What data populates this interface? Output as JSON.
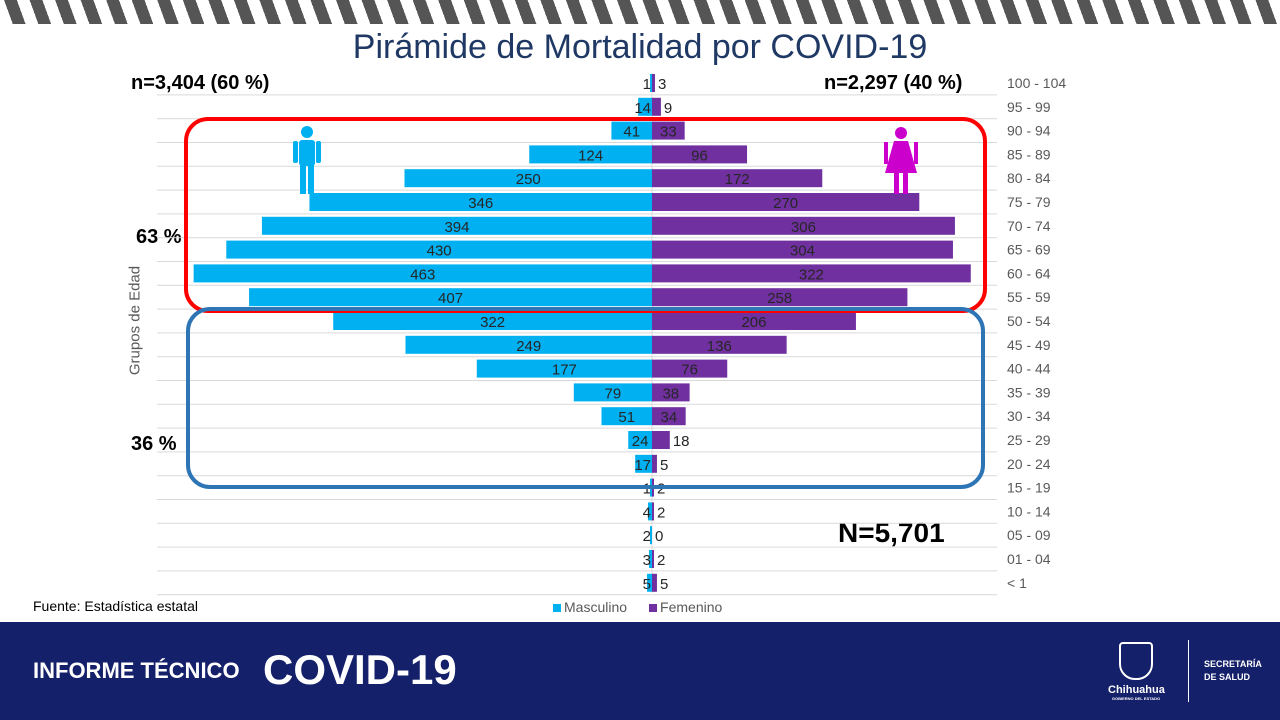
{
  "title": "Pirámide de Mortalidad por COVID-19",
  "male_n": "n=3,404 (60 %)",
  "female_n": "n=2,297 (40 %)",
  "total_n": "N=5,701",
  "pct_upper": "63 %",
  "pct_lower": "36 %",
  "source": "Fuente:  Estadística estatal",
  "footer": {
    "left": "INFORME TÉCNICO",
    "right": "COVID-19",
    "logo_text": "Chihuahua",
    "logo_sub": "GOBIERNO DEL ESTADO",
    "sec1": "SECRETARÍA",
    "sec2": "DE SALUD"
  },
  "colors": {
    "male": "#00b0f0",
    "female": "#7030a0",
    "upper_box": "#ff0000",
    "lower_box": "#2e75b6"
  },
  "chart_data": {
    "type": "bar",
    "title": "Pirámide de Mortalidad por COVID-19",
    "ylabel": "Grupos de Edad",
    "categories": [
      "100 - 104",
      "95 - 99",
      "90 - 94",
      "85 - 89",
      "80 - 84",
      "75 - 79",
      "70 - 74",
      "65 - 69",
      "60 - 64",
      "55 - 59",
      "50 - 54",
      "45 - 49",
      "40 - 44",
      "35 - 39",
      "30 - 34",
      "25 - 29",
      "20 - 24",
      "15 - 19",
      "10 - 14",
      "05 - 09",
      "01 - 04",
      "< 1"
    ],
    "series": [
      {
        "name": "Masculino",
        "values": [
          1,
          14,
          41,
          124,
          250,
          346,
          394,
          430,
          463,
          407,
          322,
          249,
          177,
          79,
          51,
          24,
          17,
          1,
          4,
          2,
          3,
          5
        ]
      },
      {
        "name": "Femenino",
        "values": [
          3,
          9,
          33,
          96,
          172,
          270,
          306,
          304,
          322,
          258,
          206,
          136,
          76,
          38,
          34,
          18,
          5,
          2,
          2,
          0,
          2,
          5
        ]
      }
    ],
    "legend": "bottom"
  }
}
